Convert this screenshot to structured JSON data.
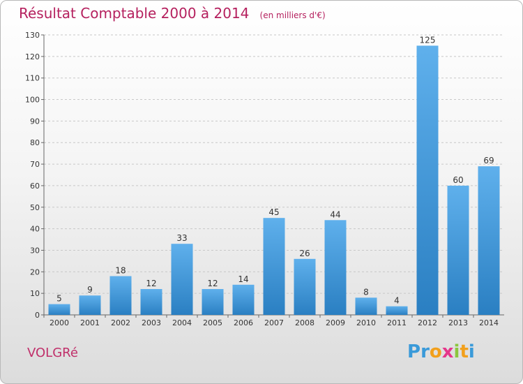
{
  "chart_data": {
    "type": "bar",
    "title": "Résultat Comptable 2000 à 2014",
    "subtitle": "(en milliers d'€)",
    "categories": [
      "2000",
      "2001",
      "2002",
      "2003",
      "2004",
      "2005",
      "2006",
      "2007",
      "2008",
      "2009",
      "2010",
      "2011",
      "2012",
      "2013",
      "2014"
    ],
    "values": [
      5,
      9,
      18,
      12,
      33,
      12,
      14,
      45,
      26,
      44,
      8,
      4,
      125,
      60,
      69
    ],
    "ylim": [
      0,
      130
    ],
    "yticks": [
      0,
      10,
      20,
      30,
      40,
      50,
      60,
      70,
      80,
      90,
      100,
      110,
      120,
      130
    ],
    "xlabel": "",
    "ylabel": "",
    "grid": true,
    "bar_color": "#3f97d8"
  },
  "footer": {
    "commune": "VOLGRé",
    "logo_letters": [
      "P",
      "r",
      "o",
      "x",
      "i",
      "t",
      "i"
    ],
    "logo_colors": [
      "#3a9ad9",
      "#3a9ad9",
      "#f2a01c",
      "#e5368a",
      "#8cc63e",
      "#f2a01c",
      "#3a9ad9"
    ]
  }
}
